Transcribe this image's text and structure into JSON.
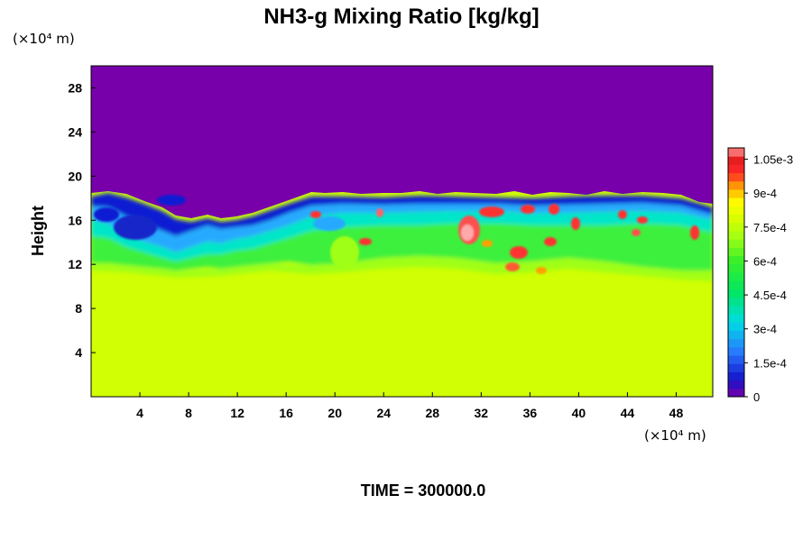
{
  "chart_data": {
    "type": "heatmap",
    "title": "NH3-g Mixing Ratio [kg/kg]",
    "ylabel": "Height",
    "x_unit_label": "(×10⁴ m)",
    "y_unit_label": "(×10⁴ m)",
    "footer": "TIME = 300000.0",
    "xlim": [
      0,
      51
    ],
    "ylim": [
      0,
      30
    ],
    "x_ticks": [
      "4",
      "8",
      "12",
      "16",
      "20",
      "24",
      "28",
      "32",
      "36",
      "40",
      "44",
      "48"
    ],
    "y_ticks": [
      "4",
      "8",
      "12",
      "16",
      "20",
      "24",
      "28"
    ],
    "colorbar": {
      "min": 0,
      "max": 0.0011,
      "tick_labels": [
        "0",
        "1.5e-4",
        "3e-4",
        "4.5e-4",
        "6e-4",
        "7.5e-4",
        "9e-4",
        "1.05e-3"
      ],
      "tick_values": [
        0,
        0.00015,
        0.0003,
        0.00045,
        0.0006,
        0.00075,
        0.0009,
        0.00105
      ]
    },
    "fields": {
      "lower_layer_value": 0.00078,
      "upper_layer_value": 0.0,
      "interface_height_approx": 17.5,
      "mid_band_value": 0.00062
    }
  }
}
